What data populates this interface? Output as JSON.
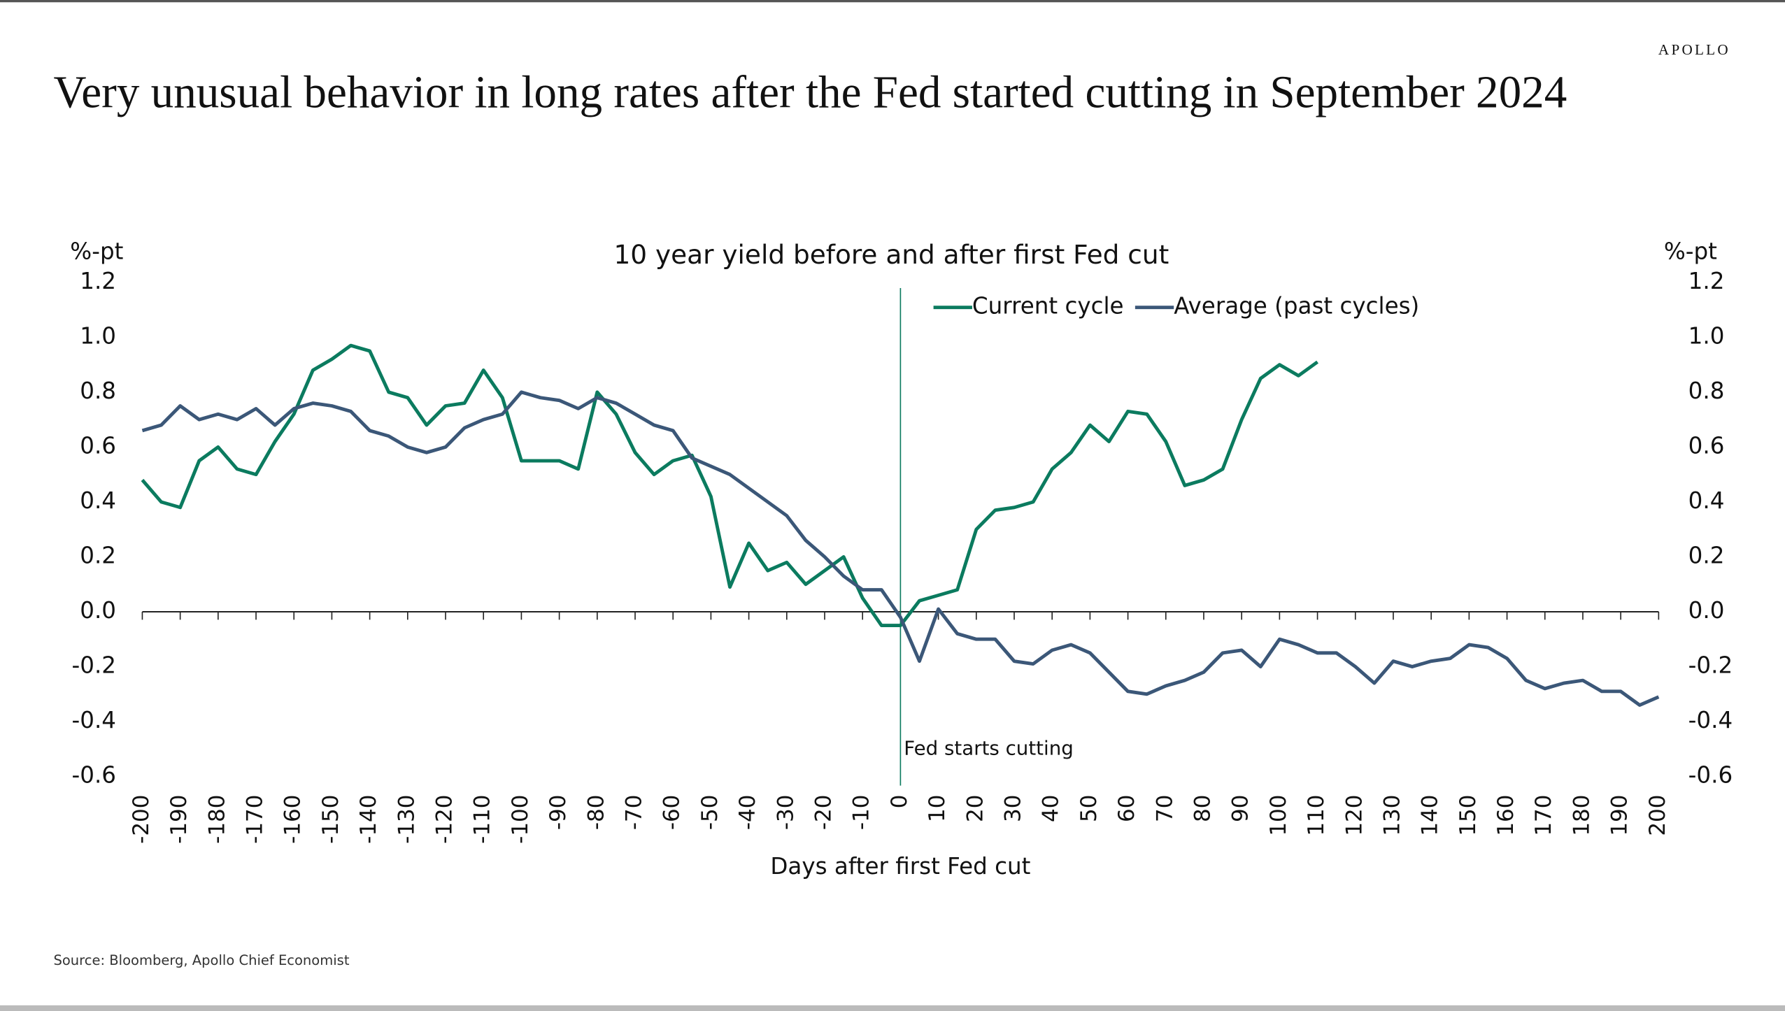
{
  "brand": "APOLLO",
  "headline": "Very unusual behavior in long rates after the Fed started cutting in September 2024",
  "source": "Source: Bloomberg, Apollo Chief Economist",
  "chart_data": {
    "type": "line",
    "title": "10 year yield before and after first Fed cut",
    "y_label": "%-pt",
    "y2_label": "%-pt",
    "x_label": "Days after first Fed cut",
    "annotation": {
      "text": "Fed starts cutting",
      "x": 0
    },
    "x": [
      -200,
      -195,
      -190,
      -185,
      -180,
      -175,
      -170,
      -165,
      -160,
      -155,
      -150,
      -145,
      -140,
      -135,
      -130,
      -125,
      -120,
      -115,
      -110,
      -105,
      -100,
      -95,
      -90,
      -85,
      -80,
      -75,
      -70,
      -65,
      -60,
      -55,
      -50,
      -45,
      -40,
      -35,
      -30,
      -25,
      -20,
      -15,
      -10,
      -5,
      0,
      5,
      10,
      15,
      20,
      25,
      30,
      35,
      40,
      45,
      50,
      55,
      60,
      65,
      70,
      75,
      80,
      85,
      90,
      95,
      100,
      105,
      110,
      115,
      120,
      125,
      130,
      135,
      140,
      145,
      150,
      155,
      160,
      165,
      170,
      175,
      180,
      185,
      190,
      195,
      200
    ],
    "series": [
      {
        "name": "Current cycle",
        "color": "#0b7b5f",
        "values": [
          0.48,
          0.4,
          0.38,
          0.55,
          0.6,
          0.52,
          0.5,
          0.62,
          0.72,
          0.88,
          0.92,
          0.97,
          0.95,
          0.8,
          0.78,
          0.68,
          0.75,
          0.76,
          0.88,
          0.78,
          0.55,
          0.55,
          0.55,
          0.52,
          0.8,
          0.72,
          0.58,
          0.5,
          0.55,
          0.57,
          0.42,
          0.09,
          0.25,
          0.15,
          0.18,
          0.1,
          0.15,
          0.2,
          0.05,
          -0.05,
          -0.05,
          0.04,
          0.06,
          0.08,
          0.3,
          0.37,
          0.38,
          0.4,
          0.52,
          0.58,
          0.68,
          0.62,
          0.73,
          0.72,
          0.62,
          0.46,
          0.48,
          0.52,
          0.7,
          0.85,
          0.9,
          0.86,
          0.91,
          null,
          null,
          null,
          null,
          null,
          null,
          null,
          null,
          null,
          null,
          null,
          null,
          null,
          null,
          null,
          null,
          null,
          null
        ]
      },
      {
        "name": "Average (past cycles)",
        "color": "#3b5778",
        "values": [
          0.66,
          0.68,
          0.75,
          0.7,
          0.72,
          0.7,
          0.74,
          0.68,
          0.74,
          0.76,
          0.75,
          0.73,
          0.66,
          0.64,
          0.6,
          0.58,
          0.6,
          0.67,
          0.7,
          0.72,
          0.8,
          0.78,
          0.77,
          0.74,
          0.78,
          0.76,
          0.72,
          0.68,
          0.66,
          0.56,
          0.53,
          0.5,
          0.45,
          0.4,
          0.35,
          0.26,
          0.2,
          0.13,
          0.08,
          0.08,
          -0.02,
          -0.18,
          0.01,
          -0.08,
          -0.1,
          -0.1,
          -0.18,
          -0.19,
          -0.14,
          -0.12,
          -0.15,
          -0.22,
          -0.29,
          -0.3,
          -0.27,
          -0.25,
          -0.22,
          -0.15,
          -0.14,
          -0.2,
          -0.1,
          -0.12,
          -0.15,
          -0.15,
          -0.2,
          -0.26,
          -0.18,
          -0.2,
          -0.18,
          -0.17,
          -0.12,
          -0.13,
          -0.17,
          -0.25,
          -0.28,
          -0.26,
          -0.25,
          -0.29,
          -0.29,
          -0.34,
          -0.31
        ]
      }
    ],
    "xlim": [
      -200,
      200
    ],
    "xticks": [
      -200,
      -190,
      -180,
      -170,
      -160,
      -150,
      -140,
      -130,
      -120,
      -110,
      -100,
      -90,
      -80,
      -70,
      -60,
      -50,
      -40,
      -30,
      -20,
      -10,
      0,
      10,
      20,
      30,
      40,
      50,
      60,
      70,
      80,
      90,
      100,
      110,
      120,
      130,
      140,
      150,
      160,
      170,
      180,
      190,
      200
    ],
    "ylim": [
      -0.6,
      1.2
    ],
    "yticks": [
      1.2,
      {
        "value": 1,
        "label": "1.0"
      },
      0.8,
      0.6,
      0.4,
      0.2,
      {
        "value": 0,
        "label": "0.0"
      },
      -0.2,
      -0.4,
      -0.6
    ],
    "y2lim": [
      -0.6,
      1.2
    ],
    "y2ticks": [
      1.2,
      {
        "value": 1,
        "label": "1.0"
      },
      0.8,
      0.6,
      0.4,
      0.2,
      {
        "value": 0,
        "label": "0.0"
      },
      -0.2,
      -0.4,
      -0.6
    ],
    "legend": "top-right"
  }
}
